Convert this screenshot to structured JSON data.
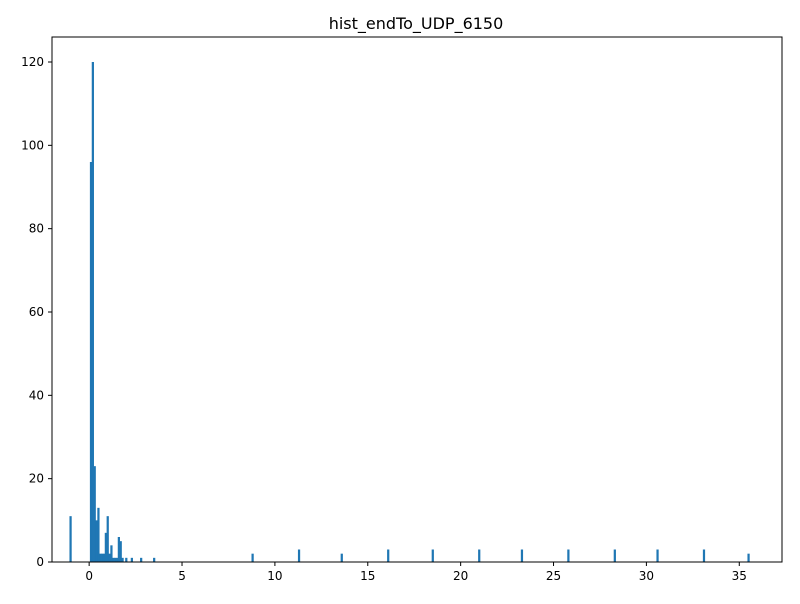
{
  "chart_data": {
    "type": "bar",
    "title": "hist_endTo_UDP_6150",
    "xlabel": "",
    "ylabel": "",
    "xlim": [
      -2.0,
      37.3
    ],
    "ylim": [
      0,
      126
    ],
    "xticks": [
      0,
      5,
      10,
      15,
      20,
      25,
      30,
      35
    ],
    "yticks": [
      0,
      20,
      40,
      60,
      80,
      100,
      120
    ],
    "bar_color": "#1f77b4",
    "bin_width": 0.12,
    "x": [
      -1.0,
      0.1,
      0.2,
      0.3,
      0.4,
      0.5,
      0.6,
      0.7,
      0.8,
      0.9,
      1.0,
      1.1,
      1.2,
      1.3,
      1.4,
      1.5,
      1.6,
      1.7,
      1.8,
      2.0,
      2.3,
      2.8,
      3.5,
      8.8,
      11.3,
      13.6,
      16.1,
      18.5,
      21.0,
      23.3,
      25.8,
      28.3,
      30.6,
      33.1,
      35.5
    ],
    "values": [
      11,
      96,
      120,
      23,
      10,
      13,
      2,
      2,
      2,
      7,
      11,
      2,
      4,
      1,
      1,
      1,
      6,
      5,
      1,
      1,
      1,
      1,
      1,
      2,
      3,
      2,
      3,
      3,
      3,
      3,
      3,
      3,
      3,
      3,
      2
    ]
  }
}
